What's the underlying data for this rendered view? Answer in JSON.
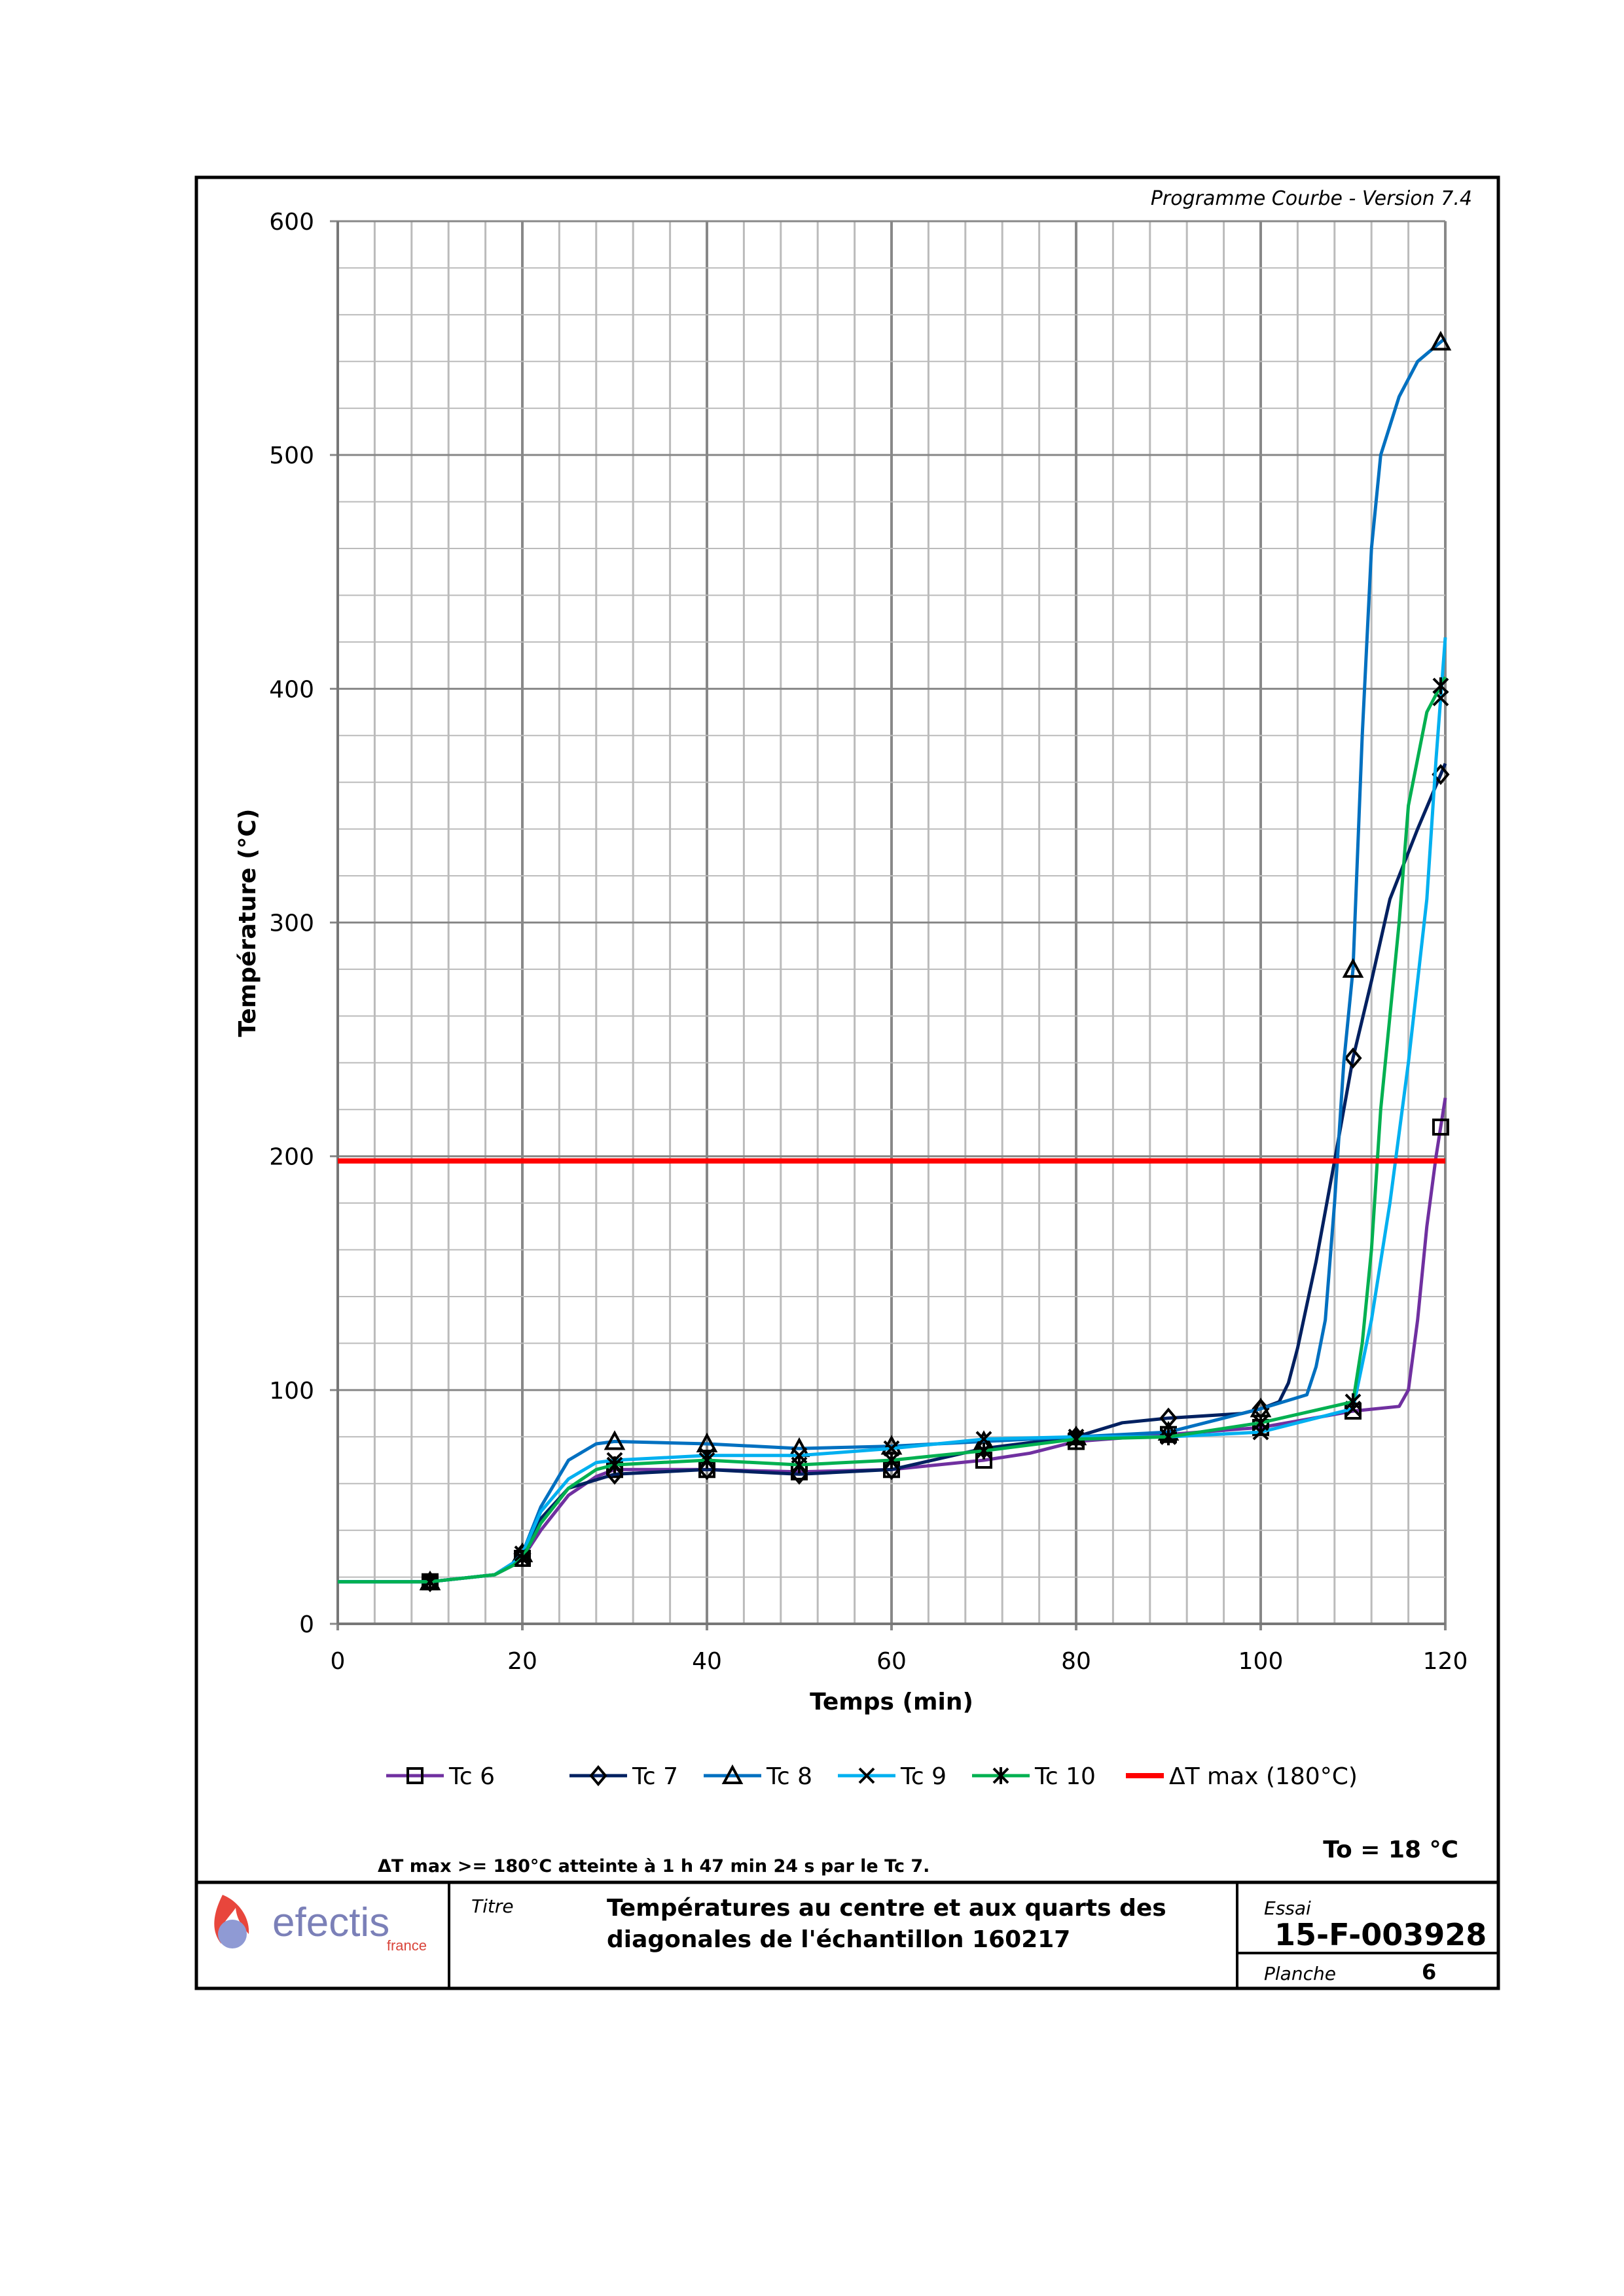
{
  "header": {
    "program_version": "Programme Courbe  - Version 7.4"
  },
  "chart_data": {
    "type": "line",
    "xlabel": "Temps (min)",
    "ylabel": "Température (°C)",
    "xlim": [
      0,
      120
    ],
    "ylim": [
      0,
      600
    ],
    "xticks": [
      0,
      20,
      40,
      60,
      80,
      100,
      120
    ],
    "yticks": [
      0,
      100,
      200,
      300,
      400,
      500,
      600
    ],
    "x_minor_step": 4,
    "y_minor_step": 20,
    "grid": true,
    "legend_position": "bottom",
    "series": [
      {
        "name": "Tc 6",
        "color": "#7030A0",
        "marker": "square",
        "points": [
          [
            0,
            18
          ],
          [
            10,
            18
          ],
          [
            17,
            21
          ],
          [
            19,
            25
          ],
          [
            20,
            28
          ],
          [
            22,
            40
          ],
          [
            25,
            55
          ],
          [
            28,
            63
          ],
          [
            30,
            66
          ],
          [
            40,
            66
          ],
          [
            50,
            65
          ],
          [
            60,
            66
          ],
          [
            65,
            68
          ],
          [
            70,
            70
          ],
          [
            75,
            73
          ],
          [
            80,
            78
          ],
          [
            90,
            81
          ],
          [
            100,
            84
          ],
          [
            110,
            91
          ],
          [
            115,
            93
          ],
          [
            116,
            100
          ],
          [
            117,
            130
          ],
          [
            118,
            170
          ],
          [
            119,
            200
          ],
          [
            120,
            225
          ]
        ]
      },
      {
        "name": "Tc 7",
        "color": "#002060",
        "marker": "diamond",
        "points": [
          [
            0,
            18
          ],
          [
            10,
            18
          ],
          [
            17,
            21
          ],
          [
            19,
            26
          ],
          [
            20,
            30
          ],
          [
            22,
            45
          ],
          [
            25,
            58
          ],
          [
            30,
            64
          ],
          [
            40,
            66
          ],
          [
            50,
            64
          ],
          [
            60,
            66
          ],
          [
            70,
            75
          ],
          [
            80,
            80
          ],
          [
            85,
            86
          ],
          [
            90,
            88
          ],
          [
            98,
            90
          ],
          [
            100,
            92
          ],
          [
            102,
            95
          ],
          [
            103,
            103
          ],
          [
            104,
            118
          ],
          [
            106,
            155
          ],
          [
            108,
            198
          ],
          [
            110,
            242
          ],
          [
            112,
            275
          ],
          [
            114,
            310
          ],
          [
            117,
            340
          ],
          [
            120,
            368
          ]
        ]
      },
      {
        "name": "Tc 8",
        "color": "#0070C0",
        "marker": "triangle",
        "points": [
          [
            0,
            18
          ],
          [
            10,
            18
          ],
          [
            17,
            21
          ],
          [
            19,
            26
          ],
          [
            20,
            30
          ],
          [
            22,
            50
          ],
          [
            25,
            70
          ],
          [
            28,
            77
          ],
          [
            30,
            78
          ],
          [
            40,
            77
          ],
          [
            50,
            75
          ],
          [
            60,
            76
          ],
          [
            70,
            78
          ],
          [
            80,
            80
          ],
          [
            90,
            82
          ],
          [
            100,
            92
          ],
          [
            105,
            98
          ],
          [
            106,
            110
          ],
          [
            107,
            130
          ],
          [
            108,
            180
          ],
          [
            109,
            240
          ],
          [
            110,
            280
          ],
          [
            111,
            380
          ],
          [
            112,
            460
          ],
          [
            113,
            500
          ],
          [
            115,
            525
          ],
          [
            117,
            540
          ],
          [
            120,
            550
          ]
        ]
      },
      {
        "name": "Tc 9",
        "color": "#00B0F0",
        "marker": "x",
        "points": [
          [
            0,
            18
          ],
          [
            10,
            18
          ],
          [
            17,
            21
          ],
          [
            19,
            26
          ],
          [
            20,
            30
          ],
          [
            22,
            48
          ],
          [
            25,
            62
          ],
          [
            28,
            69
          ],
          [
            30,
            70
          ],
          [
            40,
            72
          ],
          [
            50,
            72
          ],
          [
            60,
            75
          ],
          [
            70,
            79
          ],
          [
            80,
            80
          ],
          [
            90,
            80
          ],
          [
            100,
            82
          ],
          [
            110,
            92
          ],
          [
            112,
            130
          ],
          [
            114,
            180
          ],
          [
            116,
            240
          ],
          [
            118,
            310
          ],
          [
            119,
            370
          ],
          [
            120,
            422
          ]
        ]
      },
      {
        "name": "Tc 10",
        "color": "#00B050",
        "marker": "star",
        "points": [
          [
            0,
            18
          ],
          [
            10,
            18
          ],
          [
            17,
            21
          ],
          [
            19,
            25
          ],
          [
            20,
            28
          ],
          [
            22,
            43
          ],
          [
            25,
            58
          ],
          [
            28,
            66
          ],
          [
            30,
            68
          ],
          [
            40,
            70
          ],
          [
            50,
            68
          ],
          [
            60,
            70
          ],
          [
            70,
            74
          ],
          [
            80,
            79
          ],
          [
            90,
            80
          ],
          [
            100,
            86
          ],
          [
            110,
            95
          ],
          [
            111,
            120
          ],
          [
            112,
            160
          ],
          [
            113,
            220
          ],
          [
            115,
            300
          ],
          [
            116,
            350
          ],
          [
            118,
            390
          ],
          [
            120,
            405
          ]
        ]
      },
      {
        "name": "ΔT max (180°C)",
        "color": "#FF0000",
        "marker": "none",
        "points": [
          [
            0,
            198
          ],
          [
            120,
            198
          ]
        ]
      }
    ]
  },
  "notes": {
    "reached": "ΔT max >= 180°C atteinte à 1 h 47 min 24 s  par le Tc 7.",
    "initial_temp": "To = 18 °C"
  },
  "title_block": {
    "logo_text": "efectis",
    "logo_sub": "france",
    "titre_label": "Titre",
    "title_line1": "Températures au centre et aux quarts des",
    "title_line2": "diagonales de l'échantillon 160217",
    "essai_label": "Essai",
    "essai_value": "15-F-003928",
    "planche_label": "Planche",
    "planche_value": "6"
  }
}
